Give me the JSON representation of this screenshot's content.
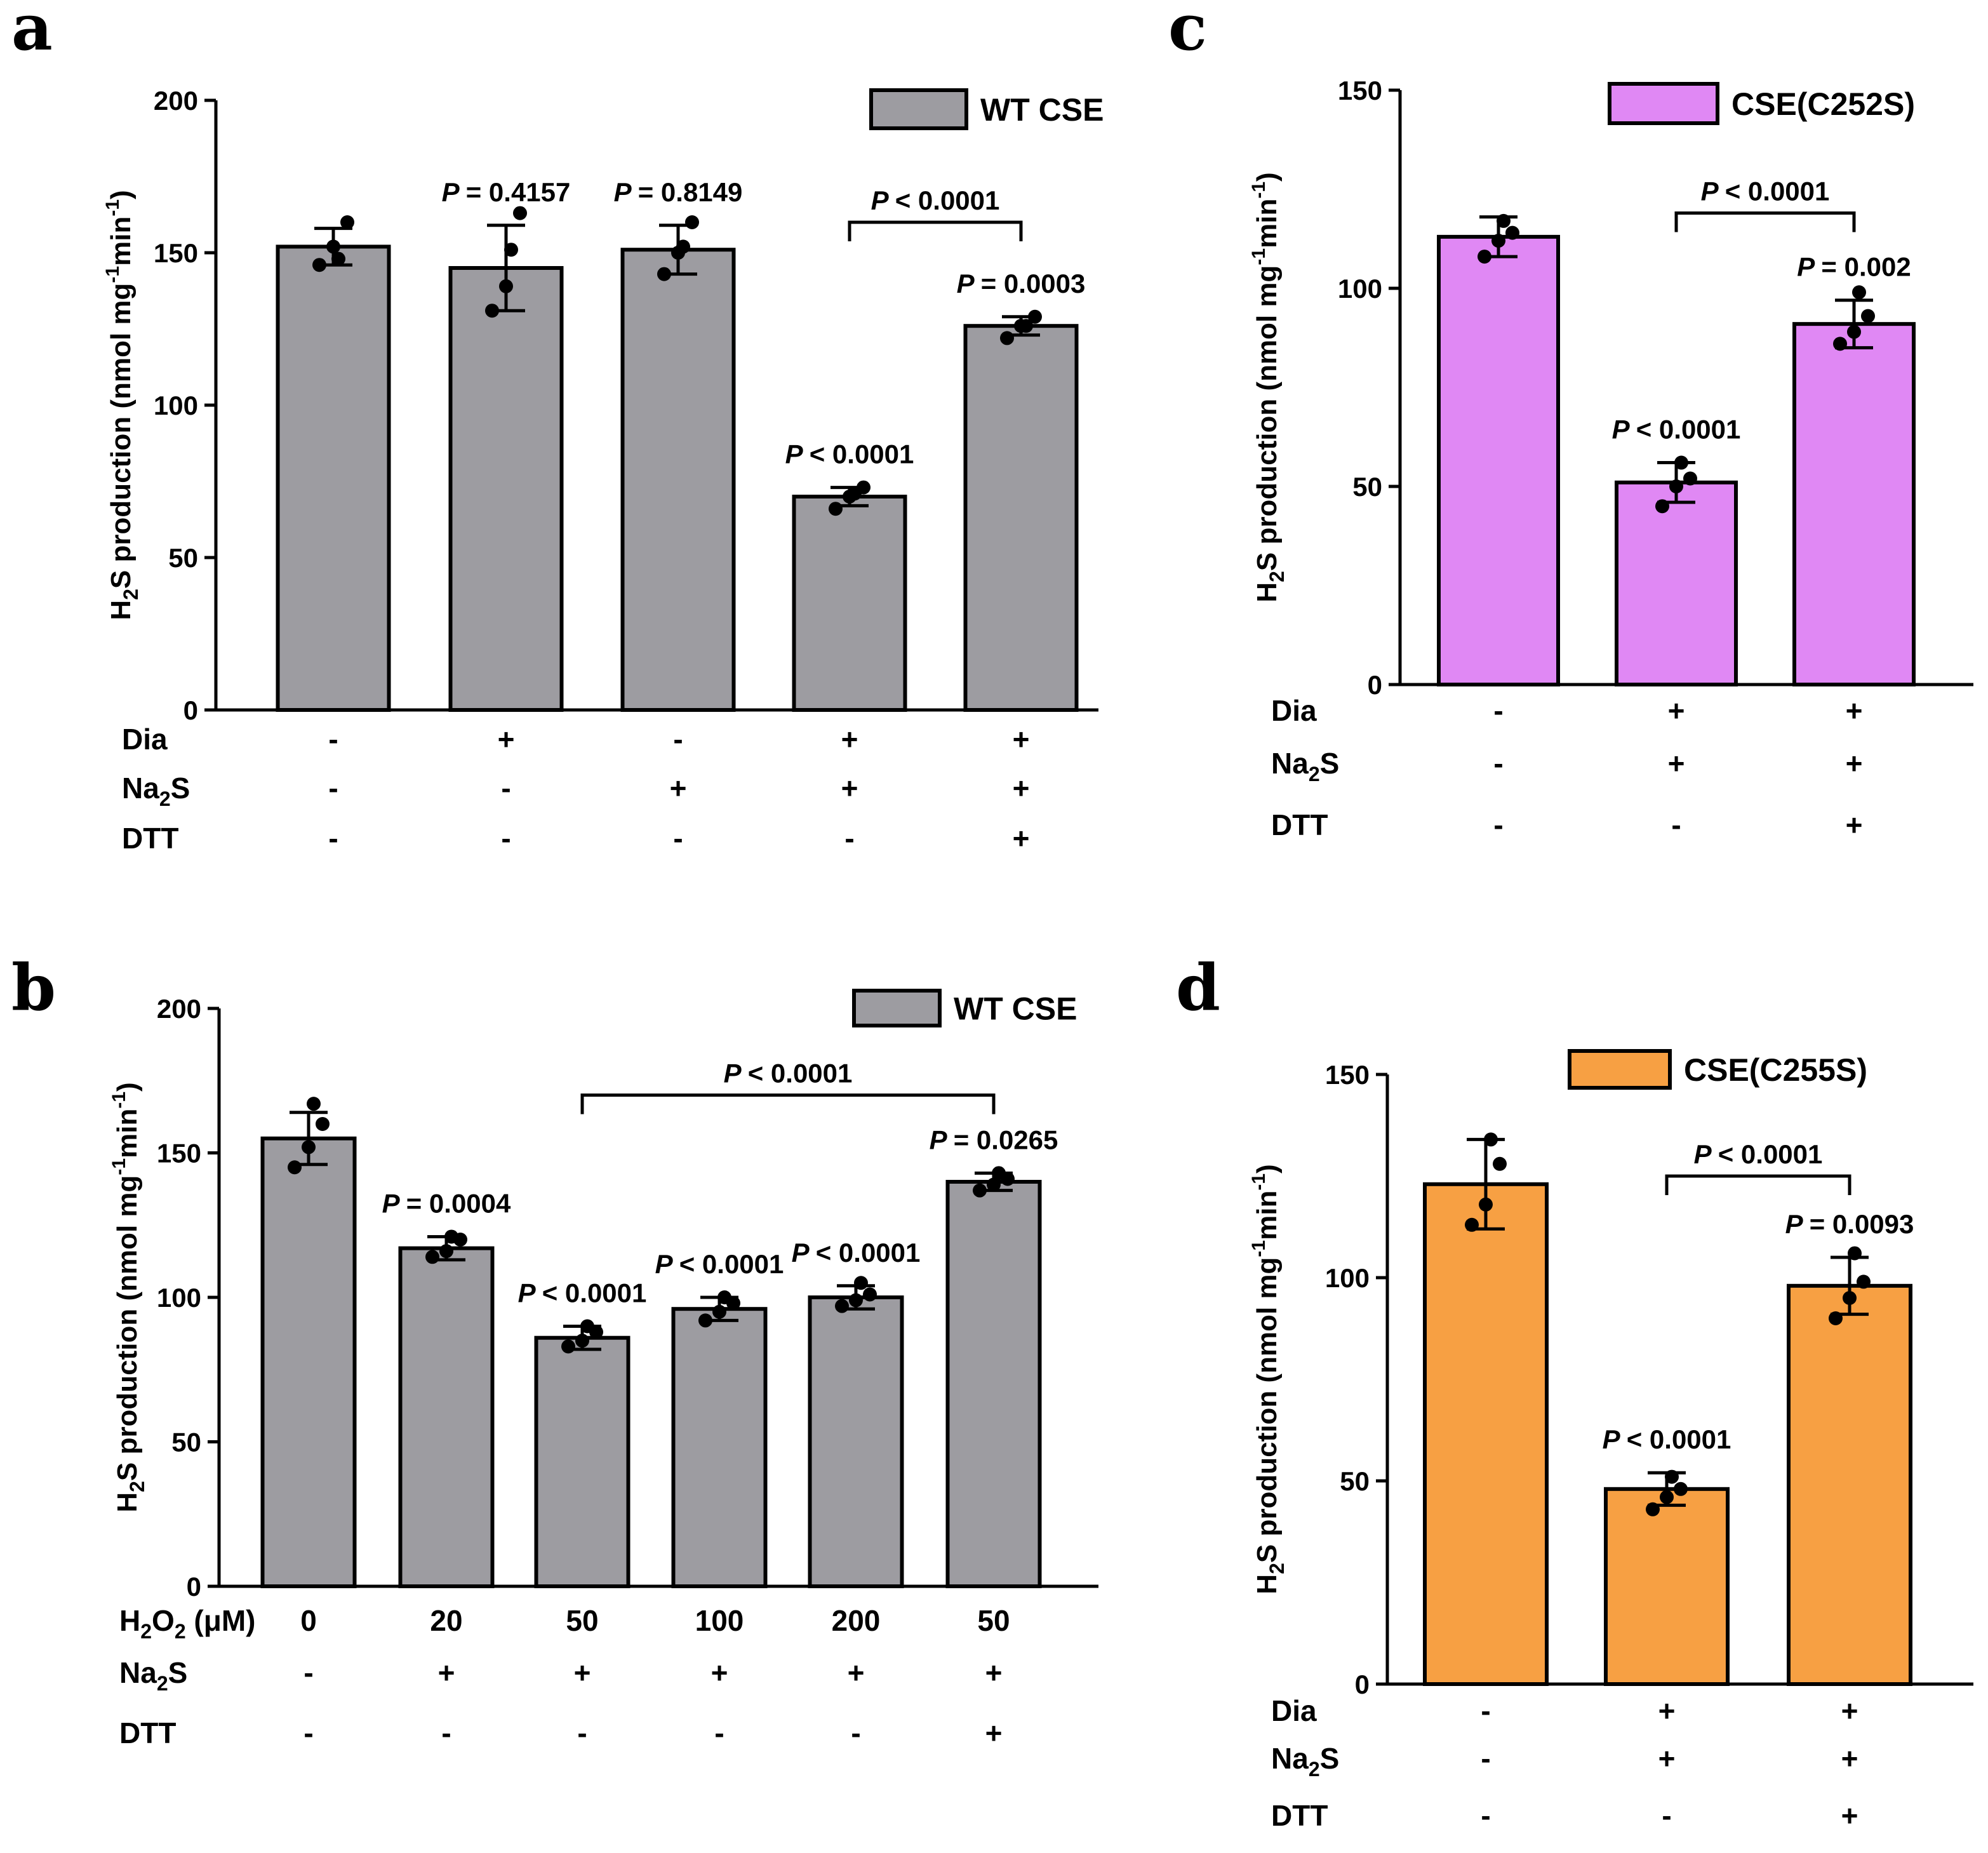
{
  "chart_data": [
    {
      "panel": "a",
      "type": "bar",
      "legend": "WT CSE",
      "color": "#9d9ca1",
      "ylabel_main": "H",
      "ylabel_sub": "2",
      "ylabel_rest": "S production (nmol mg",
      "ylabel_sup1": "-1",
      "ylabel_mid": "min",
      "ylabel_sup2": "-1",
      "ylabel_end": ")",
      "ylim": [
        0,
        200
      ],
      "yticks": [
        "0",
        "50",
        "100",
        "150",
        "200"
      ],
      "ytick_values": [
        0,
        50,
        100,
        150,
        200
      ],
      "values": [
        152,
        145,
        151,
        70,
        126
      ],
      "errors": [
        6,
        14,
        8,
        3,
        3
      ],
      "points": [
        [
          146,
          152,
          160,
          148
        ],
        [
          131,
          139,
          163,
          151
        ],
        [
          143,
          150,
          160,
          152
        ],
        [
          66,
          70,
          73,
          71
        ],
        [
          122,
          126,
          129,
          126
        ]
      ],
      "rows": [
        {
          "label": "Dia",
          "sub": "",
          "rest": "",
          "signs": [
            "-",
            "+",
            "-",
            "+",
            "+"
          ]
        },
        {
          "label": "Na",
          "sub": "2",
          "rest": "S",
          "signs": [
            "-",
            "-",
            "+",
            "+",
            "+"
          ]
        },
        {
          "label": "DTT",
          "sub": "",
          "rest": "",
          "signs": [
            "-",
            "-",
            "-",
            "-",
            "+"
          ]
        }
      ],
      "annotations": [
        {
          "bar": 1,
          "text": "= 0.4157"
        },
        {
          "bar": 2,
          "text": "= 0.8149"
        },
        {
          "bar": 3,
          "text": "< 0.0001"
        },
        {
          "bar": 4,
          "text": "= 0.0003"
        }
      ],
      "brackets": [
        {
          "from": 3,
          "to": 4,
          "text": "< 0.0001",
          "at": 160
        }
      ]
    },
    {
      "panel": "b",
      "type": "bar",
      "legend": "WT CSE",
      "color": "#9d9ca1",
      "ylabel_main": "H",
      "ylabel_sub": "2",
      "ylabel_rest": "S production (nmol mg",
      "ylabel_sup1": "-1",
      "ylabel_mid": "min",
      "ylabel_sup2": "-1",
      "ylabel_end": ")",
      "ylim": [
        0,
        200
      ],
      "yticks": [
        "0",
        "50",
        "100",
        "150",
        "200"
      ],
      "ytick_values": [
        0,
        50,
        100,
        150,
        200
      ],
      "values": [
        155,
        117,
        86,
        96,
        100,
        140
      ],
      "errors": [
        9,
        4,
        4,
        4,
        4,
        3
      ],
      "points": [
        [
          145,
          152,
          160,
          167
        ],
        [
          114,
          116,
          120,
          121
        ],
        [
          83,
          85,
          88,
          90
        ],
        [
          92,
          95,
          98,
          100
        ],
        [
          97,
          99,
          101,
          105
        ],
        [
          137,
          139,
          141,
          143
        ]
      ],
      "rows": [
        {
          "label": "H",
          "sub": "2",
          "rest": "O",
          "sub2": "2",
          "rest2": " (μM)",
          "signs": [
            "0",
            "20",
            "50",
            "100",
            "200",
            "50"
          ]
        },
        {
          "label": "Na",
          "sub": "2",
          "rest": "S",
          "signs": [
            "-",
            "+",
            "+",
            "+",
            "+",
            "+"
          ]
        },
        {
          "label": "DTT",
          "sub": "",
          "rest": "",
          "signs": [
            "-",
            "-",
            "-",
            "-",
            "-",
            "+"
          ]
        }
      ],
      "annotations": [
        {
          "bar": 1,
          "text": "= 0.0004"
        },
        {
          "bar": 2,
          "text": "< 0.0001"
        },
        {
          "bar": 3,
          "text": "< 0.0001"
        },
        {
          "bar": 4,
          "text": "< 0.0001"
        },
        {
          "bar": 5,
          "text": "= 0.0265"
        }
      ],
      "brackets": [
        {
          "from": 2,
          "to": 5,
          "text": "< 0.0001",
          "at": 170
        }
      ]
    },
    {
      "panel": "c",
      "type": "bar",
      "legend": "CSE(C252S)",
      "color": "#e088f4",
      "ylabel_main": "H",
      "ylabel_sub": "2",
      "ylabel_rest": "S production (nmol mg",
      "ylabel_sup1": "-1",
      "ylabel_mid": "min",
      "ylabel_sup2": "-1",
      "ylabel_end": ")",
      "ylim": [
        0,
        150
      ],
      "yticks": [
        "0",
        "50",
        "100",
        "150"
      ],
      "ytick_values": [
        0,
        50,
        100,
        150
      ],
      "values": [
        113,
        51,
        91
      ],
      "errors": [
        5,
        5,
        6
      ],
      "points": [
        [
          108,
          112,
          114,
          117
        ],
        [
          45,
          50,
          52,
          56
        ],
        [
          86,
          89,
          93,
          99
        ]
      ],
      "rows": [
        {
          "label": "Dia",
          "sub": "",
          "rest": "",
          "signs": [
            "-",
            "+",
            "+"
          ]
        },
        {
          "label": "Na",
          "sub": "2",
          "rest": "S",
          "signs": [
            "-",
            "+",
            "+"
          ]
        },
        {
          "label": "DTT",
          "sub": "",
          "rest": "",
          "signs": [
            "-",
            "-",
            "+"
          ]
        }
      ],
      "annotations": [
        {
          "bar": 1,
          "text": "< 0.0001"
        },
        {
          "bar": 2,
          "text": "= 0.002"
        }
      ],
      "brackets": [
        {
          "from": 1,
          "to": 2,
          "text": "< 0.0001",
          "at": 119
        }
      ]
    },
    {
      "panel": "d",
      "type": "bar",
      "legend": "CSE(C255S)",
      "color": "#f7a043",
      "ylabel_main": "H",
      "ylabel_sub": "2",
      "ylabel_rest": "S production (nmol mg",
      "ylabel_sup1": "-1",
      "ylabel_mid": "min",
      "ylabel_sup2": "-1",
      "ylabel_end": ")",
      "ylim": [
        0,
        150
      ],
      "yticks": [
        "0",
        "50",
        "100",
        "150"
      ],
      "ytick_values": [
        0,
        50,
        100,
        150
      ],
      "values": [
        123,
        48,
        98
      ],
      "errors": [
        11,
        4,
        7
      ],
      "points": [
        [
          113,
          118,
          128,
          134
        ],
        [
          43,
          46,
          48,
          51
        ],
        [
          90,
          95,
          99,
          106
        ]
      ],
      "rows": [
        {
          "label": "Dia",
          "sub": "",
          "rest": "",
          "signs": [
            "-",
            "+",
            "+"
          ]
        },
        {
          "label": "Na",
          "sub": "2",
          "rest": "S",
          "signs": [
            "-",
            "+",
            "+"
          ]
        },
        {
          "label": "DTT",
          "sub": "",
          "rest": "",
          "signs": [
            "-",
            "-",
            "+"
          ]
        }
      ],
      "annotations": [
        {
          "bar": 1,
          "text": "< 0.0001"
        },
        {
          "bar": 2,
          "text": "= 0.0093"
        }
      ],
      "brackets": [
        {
          "from": 1,
          "to": 2,
          "text": "< 0.0001",
          "at": 125
        }
      ]
    }
  ]
}
